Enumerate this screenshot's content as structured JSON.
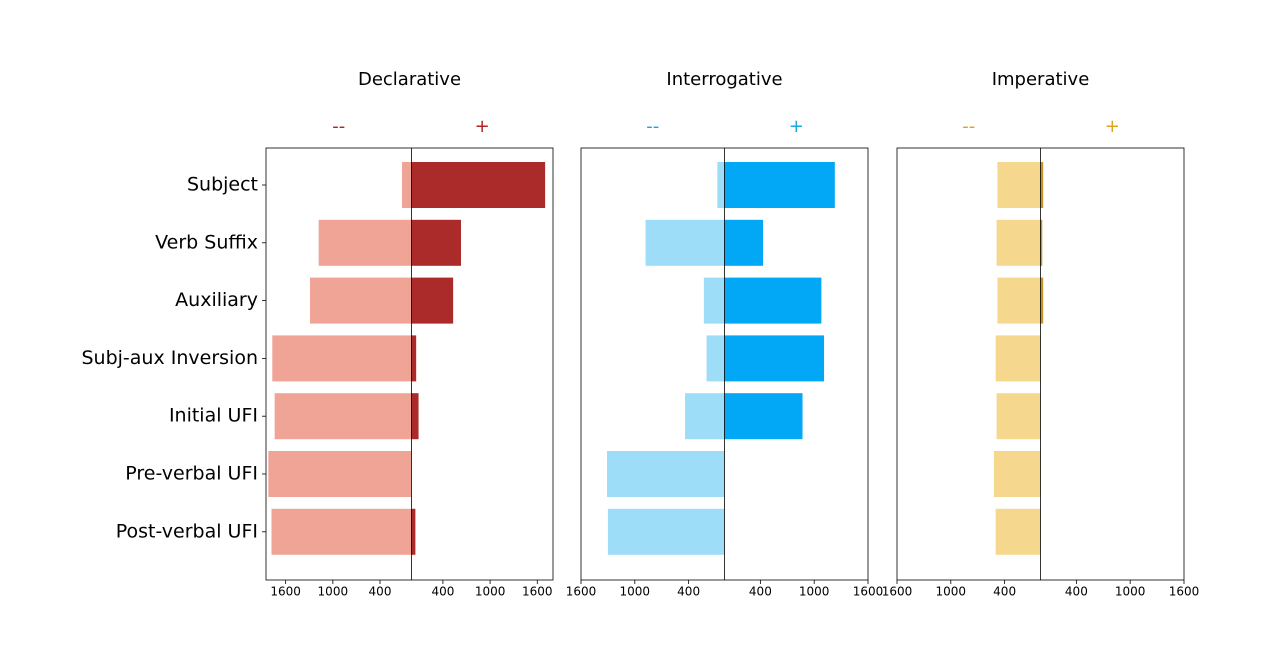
{
  "chart_data": [
    {
      "type": "diverging-bar",
      "title": "Declarative",
      "categories": [
        "Subject",
        "Verb Suffix",
        "Auxiliary",
        "Subj-aux Inversion",
        "Initial UFI",
        "Pre-verbal UFI",
        "Post-verbal UFI"
      ],
      "series": [
        {
          "name": "--",
          "color": "#f0a496",
          "label_color": "#b22222",
          "values": [
            -120,
            -1180,
            -1290,
            -1770,
            -1740,
            -1820,
            -1780
          ]
        },
        {
          "name": "+",
          "color": "#ab2a2a",
          "label_color": "#b22222",
          "values": [
            1700,
            630,
            530,
            60,
            90,
            0,
            50
          ]
        }
      ],
      "xlim": [
        -1850,
        1800
      ],
      "xticks": [
        {
          "value": -1600,
          "label": "1600"
        },
        {
          "value": -1000,
          "label": "1000"
        },
        {
          "value": -400,
          "label": "400"
        },
        400,
        1000,
        1600
      ]
    },
    {
      "type": "diverging-bar",
      "title": "Interrogative",
      "series": [
        {
          "name": "--",
          "color": "#9dddf8",
          "label_color": "#1aa6e0",
          "values": [
            -80,
            -880,
            -230,
            -200,
            -440,
            -1310,
            -1300
          ]
        },
        {
          "name": "+",
          "color": "#02a8f5",
          "label_color": "#1aa6e0",
          "values": [
            1230,
            430,
            1080,
            1110,
            870,
            0,
            0
          ]
        }
      ],
      "xlim": [
        -1600,
        1600
      ],
      "xticks": [
        {
          "value": -1600,
          "label": "1600"
        },
        {
          "value": -1000,
          "label": "1000"
        },
        {
          "value": -400,
          "label": "400"
        },
        400,
        1000,
        1600
      ]
    },
    {
      "type": "diverging-bar",
      "title": "Imperative",
      "series": [
        {
          "name": "--",
          "color": "#f6d78e",
          "label_color": "#e0a41a",
          "values": [
            -480,
            -490,
            -480,
            -500,
            -490,
            -520,
            -500
          ]
        },
        {
          "name": "+",
          "color": "#c6952a",
          "label_color": "#e0a41a",
          "values": [
            30,
            20,
            30,
            0,
            0,
            0,
            0
          ]
        }
      ],
      "xlim": [
        -1600,
        1600
      ],
      "xticks": [
        {
          "value": -1600,
          "label": "1600"
        },
        {
          "value": -1000,
          "label": "1000"
        },
        {
          "value": -400,
          "label": "400"
        },
        400,
        1000,
        1600
      ]
    }
  ]
}
